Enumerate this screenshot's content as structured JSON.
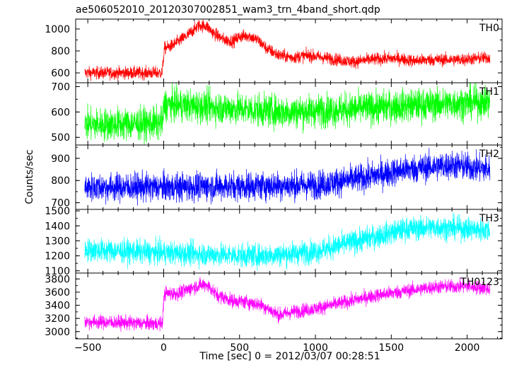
{
  "chart_data": {
    "type": "line",
    "title": "ae506052010_20120307002851_wam3_trn_4band_short.qdp",
    "xlabel": "Time [sec] 0 = 2012/03/07 00:28:51",
    "ylabel": "Counts/sec",
    "xlim": [
      -580,
      2230
    ],
    "x_ticks": [
      -500,
      0,
      500,
      1000,
      1500,
      2000
    ],
    "x_tick_labels": [
      "−500",
      "0",
      "500",
      "1000",
      "1500",
      "2000"
    ],
    "x_range": [
      -520,
      2150
    ],
    "panels": [
      {
        "name": "TH0",
        "color": "#ff0000",
        "ylim": [
          510,
          1090
        ],
        "y_ticks": [
          600,
          800,
          1000
        ],
        "y_tick_labels": [
          "600",
          "800",
          "1000"
        ],
        "noise": 40,
        "profile": [
          [
            -520,
            600
          ],
          [
            -300,
            600
          ],
          [
            -10,
            600
          ],
          [
            5,
            825
          ],
          [
            50,
            845
          ],
          [
            150,
            935
          ],
          [
            230,
            1030
          ],
          [
            280,
            1030
          ],
          [
            330,
            960
          ],
          [
            400,
            900
          ],
          [
            460,
            890
          ],
          [
            500,
            930
          ],
          [
            560,
            940
          ],
          [
            620,
            900
          ],
          [
            680,
            820
          ],
          [
            760,
            760
          ],
          [
            850,
            740
          ],
          [
            950,
            760
          ],
          [
            1050,
            740
          ],
          [
            1150,
            720
          ],
          [
            1250,
            700
          ],
          [
            1350,
            720
          ],
          [
            1450,
            730
          ],
          [
            1550,
            730
          ],
          [
            1650,
            710
          ],
          [
            1750,
            720
          ],
          [
            1850,
            720
          ],
          [
            1950,
            720
          ],
          [
            2050,
            730
          ],
          [
            2150,
            740
          ]
        ]
      },
      {
        "name": "TH1",
        "color": "#00ff00",
        "ylim": [
          470,
          715
        ],
        "y_ticks": [
          500,
          600,
          700
        ],
        "y_tick_labels": [
          "500",
          "600",
          "700"
        ],
        "noise": 45,
        "profile": [
          [
            -520,
            550
          ],
          [
            -10,
            555
          ],
          [
            5,
            630
          ],
          [
            300,
            620
          ],
          [
            800,
            600
          ],
          [
            1200,
            610
          ],
          [
            1600,
            625
          ],
          [
            2150,
            640
          ]
        ]
      },
      {
        "name": "TH2",
        "color": "#0000ff",
        "ylim": [
          670,
          960
        ],
        "y_ticks": [
          700,
          800,
          900
        ],
        "y_tick_labels": [
          "700",
          "800",
          "900"
        ],
        "noise": 45,
        "profile": [
          [
            -520,
            770
          ],
          [
            0,
            770
          ],
          [
            500,
            775
          ],
          [
            1000,
            780
          ],
          [
            1300,
            810
          ],
          [
            1600,
            850
          ],
          [
            1900,
            870
          ],
          [
            2150,
            850
          ]
        ]
      },
      {
        "name": "TH3",
        "color": "#00ffff",
        "ylim": [
          1085,
          1510
        ],
        "y_ticks": [
          1100,
          1200,
          1300,
          1400,
          1500
        ],
        "y_tick_labels": [
          "1100",
          "1200",
          "1300",
          "1400",
          "1500"
        ],
        "noise": 55,
        "profile": [
          [
            -520,
            1240
          ],
          [
            0,
            1220
          ],
          [
            300,
            1210
          ],
          [
            600,
            1200
          ],
          [
            800,
            1210
          ],
          [
            1000,
            1230
          ],
          [
            1200,
            1280
          ],
          [
            1400,
            1330
          ],
          [
            1600,
            1380
          ],
          [
            1800,
            1390
          ],
          [
            2000,
            1380
          ],
          [
            2150,
            1370
          ]
        ]
      },
      {
        "name": "TH0123",
        "color": "#ff00ff",
        "ylim": [
          2890,
          3890
        ],
        "y_ticks": [
          3000,
          3200,
          3400,
          3600,
          3800
        ],
        "y_tick_labels": [
          "3000",
          "3200",
          "3400",
          "3600",
          "3800"
        ],
        "noise": 75,
        "profile": [
          [
            -520,
            3150
          ],
          [
            -10,
            3120
          ],
          [
            5,
            3580
          ],
          [
            100,
            3580
          ],
          [
            200,
            3680
          ],
          [
            280,
            3720
          ],
          [
            350,
            3560
          ],
          [
            450,
            3470
          ],
          [
            550,
            3450
          ],
          [
            650,
            3400
          ],
          [
            760,
            3250
          ],
          [
            850,
            3300
          ],
          [
            1000,
            3350
          ],
          [
            1200,
            3450
          ],
          [
            1400,
            3550
          ],
          [
            1600,
            3620
          ],
          [
            1800,
            3680
          ],
          [
            2000,
            3690
          ],
          [
            2150,
            3650
          ]
        ]
      }
    ]
  }
}
